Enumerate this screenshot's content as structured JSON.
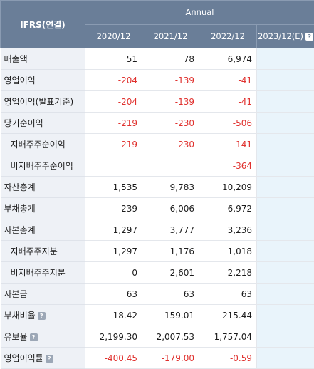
{
  "header": {
    "corner_label": "IFRS(연결)",
    "group_label": "Annual",
    "years": [
      "2020/12",
      "2021/12",
      "2022/12",
      "2023/12(E)"
    ]
  },
  "rows": [
    {
      "label": "매출액",
      "sub": false,
      "help": false,
      "values": [
        "51",
        "78",
        "6,974",
        ""
      ]
    },
    {
      "label": "영업이익",
      "sub": false,
      "help": false,
      "values": [
        "-204",
        "-139",
        "-41",
        ""
      ]
    },
    {
      "label": "영업이익(발표기준)",
      "sub": false,
      "help": false,
      "values": [
        "-204",
        "-139",
        "-41",
        ""
      ]
    },
    {
      "label": "당기순이익",
      "sub": false,
      "help": false,
      "values": [
        "-219",
        "-230",
        "-506",
        ""
      ]
    },
    {
      "label": "지배주주순이익",
      "sub": true,
      "help": false,
      "values": [
        "-219",
        "-230",
        "-141",
        ""
      ]
    },
    {
      "label": "비지배주주순이익",
      "sub": true,
      "help": false,
      "values": [
        "",
        "",
        "-364",
        ""
      ]
    },
    {
      "label": "자산총계",
      "sub": false,
      "help": false,
      "values": [
        "1,535",
        "9,783",
        "10,209",
        ""
      ]
    },
    {
      "label": "부채총계",
      "sub": false,
      "help": false,
      "values": [
        "239",
        "6,006",
        "6,972",
        ""
      ]
    },
    {
      "label": "자본총계",
      "sub": false,
      "help": false,
      "values": [
        "1,297",
        "3,777",
        "3,236",
        ""
      ]
    },
    {
      "label": "지배주주지분",
      "sub": true,
      "help": false,
      "values": [
        "1,297",
        "1,176",
        "1,018",
        ""
      ]
    },
    {
      "label": "비지배주주지분",
      "sub": true,
      "help": false,
      "values": [
        "0",
        "2,601",
        "2,218",
        ""
      ]
    },
    {
      "label": "자본금",
      "sub": false,
      "help": false,
      "values": [
        "63",
        "63",
        "63",
        ""
      ]
    },
    {
      "label": "부채비율",
      "sub": false,
      "help": true,
      "values": [
        "18.42",
        "159.01",
        "215.44",
        ""
      ]
    },
    {
      "label": "유보율",
      "sub": false,
      "help": true,
      "values": [
        "2,199.30",
        "2,007.53",
        "1,757.04",
        ""
      ]
    },
    {
      "label": "영업이익률",
      "sub": false,
      "help": true,
      "values": [
        "-400.45",
        "-179.00",
        "-0.59",
        ""
      ]
    }
  ],
  "help_glyph": "?",
  "colors": {
    "header_bg": "#6a7e98",
    "negative": "#e0312e",
    "estimate_bg": "#e9f4fb",
    "label_bg": "#eef1f6"
  }
}
